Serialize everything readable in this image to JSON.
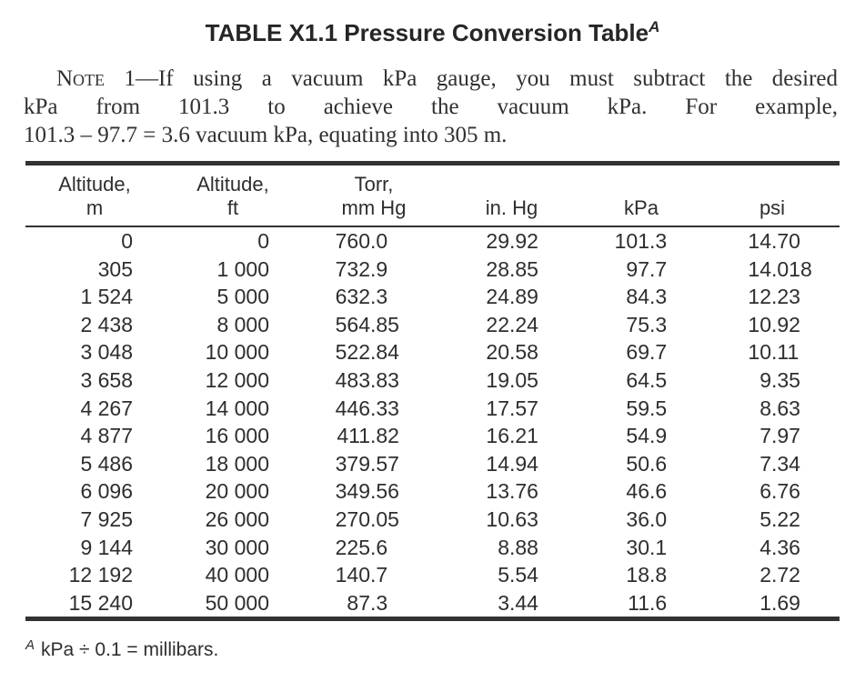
{
  "title": {
    "text": "TABLE X1.1 Pressure Conversion Table",
    "superscript": "A"
  },
  "note": {
    "label": "Note",
    "line1": "1—If using a vacuum kPa gauge, you must subtract the desired",
    "line2": "kPa from 101.3 to achieve the vacuum kPa. For example,",
    "line3": "101.3 – 97.7 = 3.6 vacuum kPa, equating into 305 m."
  },
  "table": {
    "columns": [
      {
        "line1": "Altitude,",
        "line2": "m"
      },
      {
        "line1": "Altitude,",
        "line2": "ft"
      },
      {
        "line1": "Torr,",
        "line2": "mm Hg"
      },
      {
        "line1": "",
        "line2": "in. Hg"
      },
      {
        "line1": "",
        "line2": "kPa"
      },
      {
        "line1": "",
        "line2": "psi"
      }
    ],
    "rows": [
      [
        "0",
        "0",
        "760.0",
        "29.92",
        "101.3",
        "14.70"
      ],
      [
        "305",
        "1 000",
        "732.9",
        "28.85",
        "97.7",
        "14.018"
      ],
      [
        "1 524",
        "5 000",
        "632.3",
        "24.89",
        "84.3",
        "12.23"
      ],
      [
        "2 438",
        "8 000",
        "564.85",
        "22.24",
        "75.3",
        "10.92"
      ],
      [
        "3 048",
        "10 000",
        "522.84",
        "20.58",
        "69.7",
        "10.11"
      ],
      [
        "3 658",
        "12 000",
        "483.83",
        "19.05",
        "64.5",
        "9.35"
      ],
      [
        "4 267",
        "14 000",
        "446.33",
        "17.57",
        "59.5",
        "8.63"
      ],
      [
        "4 877",
        "16 000",
        "411.82",
        "16.21",
        "54.9",
        "7.97"
      ],
      [
        "5 486",
        "18 000",
        "379.57",
        "14.94",
        "50.6",
        "7.34"
      ],
      [
        "6 096",
        "20 000",
        "349.56",
        "13.76",
        "46.6",
        "6.76"
      ],
      [
        "7 925",
        "26 000",
        "270.05",
        "10.63",
        "36.0",
        "5.22"
      ],
      [
        "9 144",
        "30 000",
        "225.6",
        "8.88",
        "30.1",
        "4.36"
      ],
      [
        "12 192",
        "40 000",
        "140.7",
        "5.54",
        "18.8",
        "2.72"
      ],
      [
        "15 240",
        "50 000",
        "87.3",
        "3.44",
        "11.6",
        "1.69"
      ]
    ]
  },
  "footnote": {
    "superscript": "A",
    "text": "kPa ÷ 0.1 = millibars."
  },
  "colors": {
    "text": "#2e2e2e",
    "rule": "#323232",
    "background": "#ffffff"
  }
}
